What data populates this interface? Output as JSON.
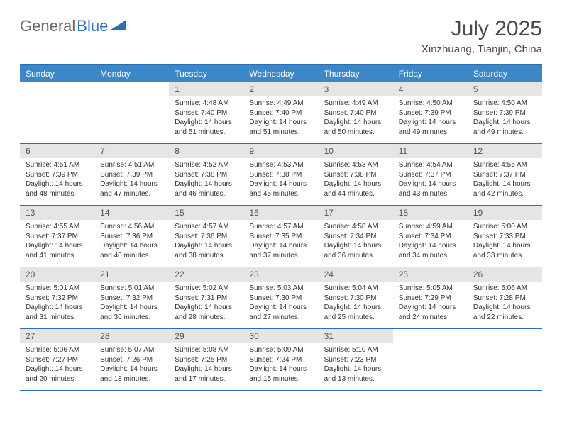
{
  "brand": {
    "part1": "General",
    "part2": "Blue"
  },
  "title": "July 2025",
  "location": "Xinzhuang, Tianjin, China",
  "colors": {
    "header_bg": "#3b87c8",
    "header_border": "#2a6fb5",
    "daynum_bg": "#e5e5e5",
    "text": "#333333",
    "title_text": "#4a4a4a",
    "logo_gray": "#6a6a6a",
    "logo_blue": "#2a6fb5"
  },
  "weekdays": [
    "Sunday",
    "Monday",
    "Tuesday",
    "Wednesday",
    "Thursday",
    "Friday",
    "Saturday"
  ],
  "weeks": [
    [
      {
        "day": "",
        "lines": []
      },
      {
        "day": "",
        "lines": []
      },
      {
        "day": "1",
        "lines": [
          "Sunrise: 4:48 AM",
          "Sunset: 7:40 PM",
          "Daylight: 14 hours",
          "and 51 minutes."
        ]
      },
      {
        "day": "2",
        "lines": [
          "Sunrise: 4:49 AM",
          "Sunset: 7:40 PM",
          "Daylight: 14 hours",
          "and 51 minutes."
        ]
      },
      {
        "day": "3",
        "lines": [
          "Sunrise: 4:49 AM",
          "Sunset: 7:40 PM",
          "Daylight: 14 hours",
          "and 50 minutes."
        ]
      },
      {
        "day": "4",
        "lines": [
          "Sunrise: 4:50 AM",
          "Sunset: 7:39 PM",
          "Daylight: 14 hours",
          "and 49 minutes."
        ]
      },
      {
        "day": "5",
        "lines": [
          "Sunrise: 4:50 AM",
          "Sunset: 7:39 PM",
          "Daylight: 14 hours",
          "and 49 minutes."
        ]
      }
    ],
    [
      {
        "day": "6",
        "lines": [
          "Sunrise: 4:51 AM",
          "Sunset: 7:39 PM",
          "Daylight: 14 hours",
          "and 48 minutes."
        ]
      },
      {
        "day": "7",
        "lines": [
          "Sunrise: 4:51 AM",
          "Sunset: 7:39 PM",
          "Daylight: 14 hours",
          "and 47 minutes."
        ]
      },
      {
        "day": "8",
        "lines": [
          "Sunrise: 4:52 AM",
          "Sunset: 7:38 PM",
          "Daylight: 14 hours",
          "and 46 minutes."
        ]
      },
      {
        "day": "9",
        "lines": [
          "Sunrise: 4:53 AM",
          "Sunset: 7:38 PM",
          "Daylight: 14 hours",
          "and 45 minutes."
        ]
      },
      {
        "day": "10",
        "lines": [
          "Sunrise: 4:53 AM",
          "Sunset: 7:38 PM",
          "Daylight: 14 hours",
          "and 44 minutes."
        ]
      },
      {
        "day": "11",
        "lines": [
          "Sunrise: 4:54 AM",
          "Sunset: 7:37 PM",
          "Daylight: 14 hours",
          "and 43 minutes."
        ]
      },
      {
        "day": "12",
        "lines": [
          "Sunrise: 4:55 AM",
          "Sunset: 7:37 PM",
          "Daylight: 14 hours",
          "and 42 minutes."
        ]
      }
    ],
    [
      {
        "day": "13",
        "lines": [
          "Sunrise: 4:55 AM",
          "Sunset: 7:37 PM",
          "Daylight: 14 hours",
          "and 41 minutes."
        ]
      },
      {
        "day": "14",
        "lines": [
          "Sunrise: 4:56 AM",
          "Sunset: 7:36 PM",
          "Daylight: 14 hours",
          "and 40 minutes."
        ]
      },
      {
        "day": "15",
        "lines": [
          "Sunrise: 4:57 AM",
          "Sunset: 7:36 PM",
          "Daylight: 14 hours",
          "and 38 minutes."
        ]
      },
      {
        "day": "16",
        "lines": [
          "Sunrise: 4:57 AM",
          "Sunset: 7:35 PM",
          "Daylight: 14 hours",
          "and 37 minutes."
        ]
      },
      {
        "day": "17",
        "lines": [
          "Sunrise: 4:58 AM",
          "Sunset: 7:34 PM",
          "Daylight: 14 hours",
          "and 36 minutes."
        ]
      },
      {
        "day": "18",
        "lines": [
          "Sunrise: 4:59 AM",
          "Sunset: 7:34 PM",
          "Daylight: 14 hours",
          "and 34 minutes."
        ]
      },
      {
        "day": "19",
        "lines": [
          "Sunrise: 5:00 AM",
          "Sunset: 7:33 PM",
          "Daylight: 14 hours",
          "and 33 minutes."
        ]
      }
    ],
    [
      {
        "day": "20",
        "lines": [
          "Sunrise: 5:01 AM",
          "Sunset: 7:32 PM",
          "Daylight: 14 hours",
          "and 31 minutes."
        ]
      },
      {
        "day": "21",
        "lines": [
          "Sunrise: 5:01 AM",
          "Sunset: 7:32 PM",
          "Daylight: 14 hours",
          "and 30 minutes."
        ]
      },
      {
        "day": "22",
        "lines": [
          "Sunrise: 5:02 AM",
          "Sunset: 7:31 PM",
          "Daylight: 14 hours",
          "and 28 minutes."
        ]
      },
      {
        "day": "23",
        "lines": [
          "Sunrise: 5:03 AM",
          "Sunset: 7:30 PM",
          "Daylight: 14 hours",
          "and 27 minutes."
        ]
      },
      {
        "day": "24",
        "lines": [
          "Sunrise: 5:04 AM",
          "Sunset: 7:30 PM",
          "Daylight: 14 hours",
          "and 25 minutes."
        ]
      },
      {
        "day": "25",
        "lines": [
          "Sunrise: 5:05 AM",
          "Sunset: 7:29 PM",
          "Daylight: 14 hours",
          "and 24 minutes."
        ]
      },
      {
        "day": "26",
        "lines": [
          "Sunrise: 5:06 AM",
          "Sunset: 7:28 PM",
          "Daylight: 14 hours",
          "and 22 minutes."
        ]
      }
    ],
    [
      {
        "day": "27",
        "lines": [
          "Sunrise: 5:06 AM",
          "Sunset: 7:27 PM",
          "Daylight: 14 hours",
          "and 20 minutes."
        ]
      },
      {
        "day": "28",
        "lines": [
          "Sunrise: 5:07 AM",
          "Sunset: 7:26 PM",
          "Daylight: 14 hours",
          "and 18 minutes."
        ]
      },
      {
        "day": "29",
        "lines": [
          "Sunrise: 5:08 AM",
          "Sunset: 7:25 PM",
          "Daylight: 14 hours",
          "and 17 minutes."
        ]
      },
      {
        "day": "30",
        "lines": [
          "Sunrise: 5:09 AM",
          "Sunset: 7:24 PM",
          "Daylight: 14 hours",
          "and 15 minutes."
        ]
      },
      {
        "day": "31",
        "lines": [
          "Sunrise: 5:10 AM",
          "Sunset: 7:23 PM",
          "Daylight: 14 hours",
          "and 13 minutes."
        ]
      },
      {
        "day": "",
        "lines": []
      },
      {
        "day": "",
        "lines": []
      }
    ]
  ]
}
